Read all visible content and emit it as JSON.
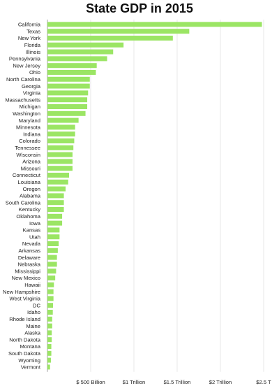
{
  "chart_data": {
    "type": "bar",
    "orientation": "horizontal",
    "title": "State GDP in 2015",
    "xlabel": "",
    "ylabel": "",
    "unit": "billion USD",
    "xlim": [
      0,
      2500
    ],
    "grid": true,
    "legend": "none",
    "bar_color": "#9be564",
    "ticks": [
      {
        "value": 500,
        "label": "$ 500 Billion"
      },
      {
        "value": 1000,
        "label": "$1 Trillion"
      },
      {
        "value": 1500,
        "label": "$1.5 Trillion"
      },
      {
        "value": 2000,
        "label": "$2 Trillion"
      },
      {
        "value": 2500,
        "label": "$2.5 T"
      }
    ],
    "categories": [
      "California",
      "Texas",
      "New York",
      "Florida",
      "Illinois",
      "Pennsylvania",
      "New Jersey",
      "Ohio",
      "North Carolina",
      "Georgia",
      "Virginia",
      "Massachusetts",
      "Michigan",
      "Washington",
      "Maryland",
      "Minnesota",
      "Indiana",
      "Colorado",
      "Tennessee",
      "Wisconsin",
      "Arizona",
      "Missouri",
      "Connecticut",
      "Louisiana",
      "Oregon",
      "Alabama",
      "South Carolina",
      "Kentucky",
      "Oklahoma",
      "Iowa",
      "Kansas",
      "Utah",
      "Nevada",
      "Arkansas",
      "Delaware",
      "Nebraska",
      "Mississippi",
      "New Mexico",
      "Hawaii",
      "New Hampshire",
      "West Virginia",
      "DC",
      "Idaho",
      "Rhode Island",
      "Maine",
      "Alaska",
      "North Dakota",
      "Montana",
      "South Dakota",
      "Wyoming",
      "Vermont"
    ],
    "values": [
      2480,
      1640,
      1450,
      880,
      760,
      690,
      570,
      560,
      490,
      490,
      470,
      460,
      460,
      440,
      360,
      320,
      320,
      310,
      300,
      290,
      290,
      290,
      250,
      240,
      210,
      190,
      190,
      190,
      170,
      170,
      140,
      140,
      130,
      120,
      110,
      110,
      100,
      90,
      75,
      70,
      70,
      65,
      62,
      55,
      55,
      50,
      50,
      45,
      45,
      40,
      30
    ]
  }
}
